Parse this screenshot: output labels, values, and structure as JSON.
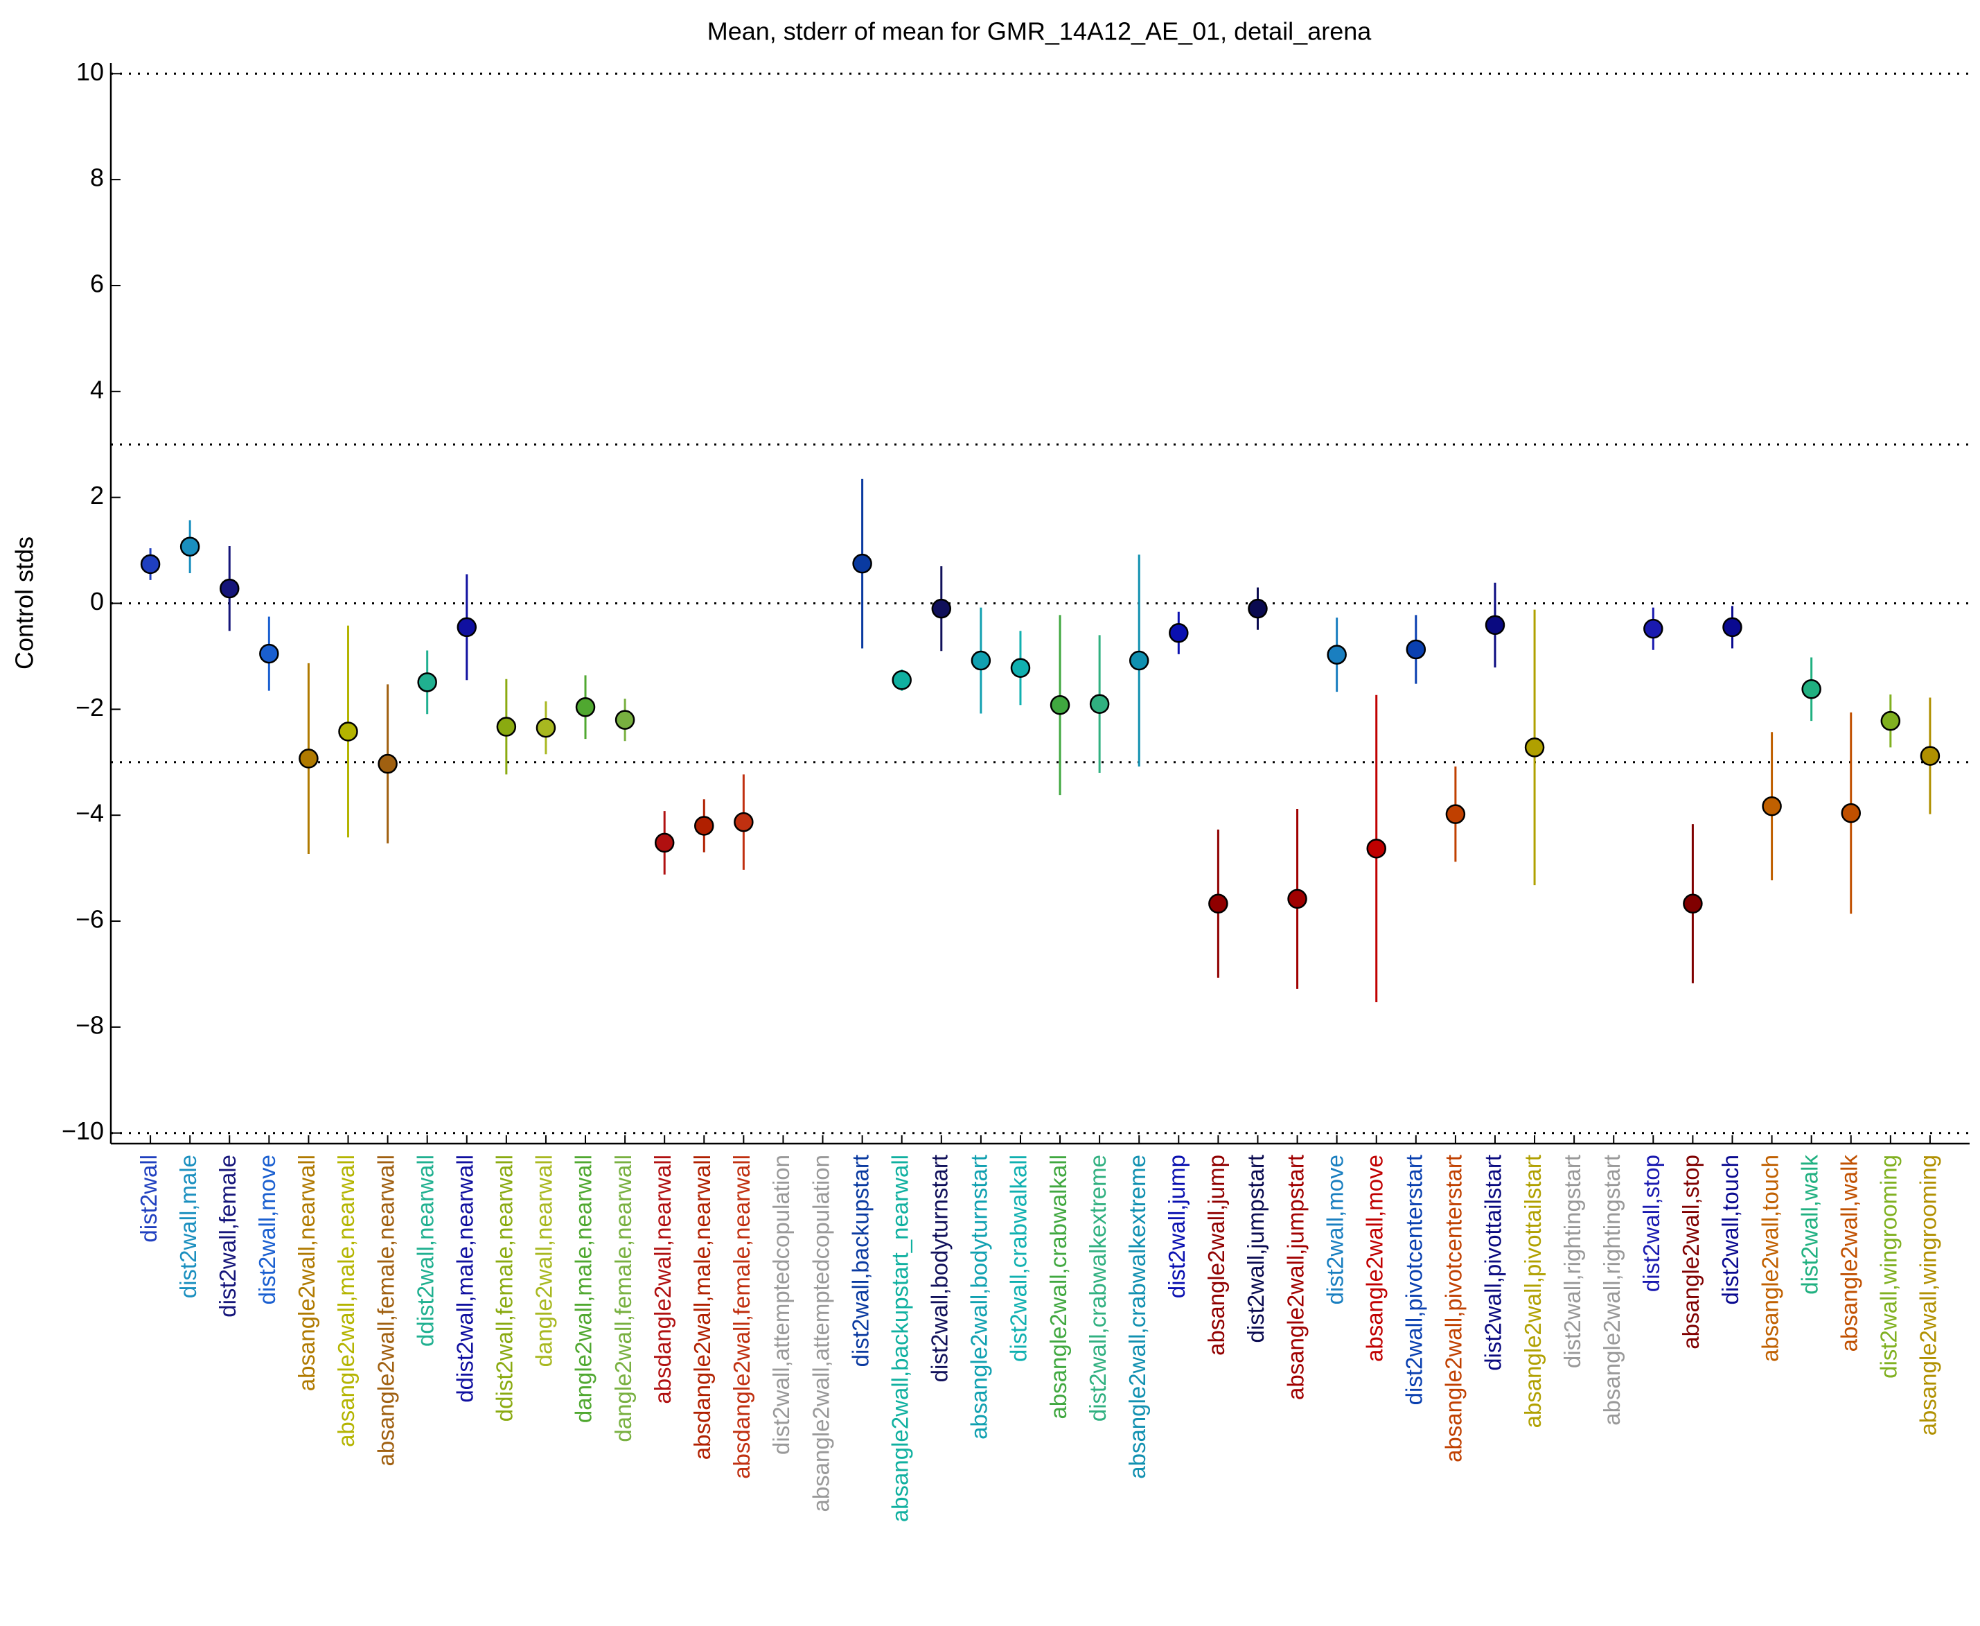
{
  "chart_data": {
    "type": "errorbar",
    "title": "Mean, stderr of mean for GMR_14A12_AE_01, detail_arena",
    "y_label": "Control stds",
    "categories": [
      "dist2wall",
      "dist2wall,male",
      "dist2wall,female",
      "dist2wall,move",
      "absangle2wall,nearwall",
      "absangle2wall,male,nearwall",
      "absangle2wall,female,nearwall",
      "ddist2wall,nearwall",
      "ddist2wall,male,nearwall",
      "ddist2wall,female,nearwall",
      "dangle2wall,nearwall",
      "dangle2wall,male,nearwall",
      "dangle2wall,female,nearwall",
      "absdangle2wall,nearwall",
      "absdangle2wall,male,nearwall",
      "absdangle2wall,female,nearwall",
      "dist2wall,attemptedcopulation",
      "absangle2wall,attemptedcopulation",
      "dist2wall,backupstart",
      "absangle2wall,backupstart_nearwall",
      "dist2wall,bodyturnstart",
      "absangle2wall,bodyturnstart",
      "dist2wall,crabwalkall",
      "absangle2wall,crabwalkall",
      "dist2wall,crabwalkextreme",
      "absangle2wall,crabwalkextreme",
      "dist2wall,jump",
      "absangle2wall,jump",
      "dist2wall,jumpstart",
      "absangle2wall,jumpstart",
      "dist2wall,move",
      "absangle2wall,move",
      "dist2wall,pivotcenterstart",
      "absangle2wall,pivotcenterstart",
      "dist2wall,pivottailstart",
      "absangle2wall,pivottailstart",
      "dist2wall,rightingstart",
      "absangle2wall,rightingstart",
      "dist2wall,stop",
      "absangle2wall,stop",
      "dist2wall,touch",
      "absangle2wall,touch",
      "dist2wall,walk",
      "absangle2wall,walk",
      "dist2wall,wingrooming",
      "absangle2wall,wingrooming"
    ],
    "values": [
      0.74,
      1.07,
      0.28,
      -0.95,
      -2.93,
      -2.42,
      -3.03,
      -1.49,
      -0.45,
      -2.33,
      -2.35,
      -1.96,
      -2.2,
      -4.52,
      -4.2,
      -4.13,
      null,
      null,
      0.75,
      -1.45,
      -0.1,
      -1.08,
      -1.22,
      -1.92,
      -1.9,
      -1.08,
      -0.56,
      -5.67,
      -0.1,
      -5.58,
      -0.97,
      -4.63,
      -0.87,
      -3.98,
      -0.41,
      -2.72,
      null,
      null,
      -0.48,
      -5.67,
      -0.45,
      -3.83,
      -1.62,
      -3.96,
      -2.22,
      -2.88
    ],
    "errors": [
      0.3,
      0.5,
      0.8,
      0.7,
      1.8,
      2.0,
      1.5,
      0.6,
      1.0,
      0.9,
      0.5,
      0.6,
      0.4,
      0.6,
      0.5,
      0.9,
      null,
      null,
      1.6,
      0.2,
      0.8,
      1.0,
      0.7,
      1.7,
      1.3,
      2.0,
      0.4,
      1.4,
      0.4,
      1.7,
      0.7,
      2.9,
      0.65,
      0.9,
      0.8,
      2.6,
      null,
      null,
      0.4,
      1.5,
      0.4,
      1.4,
      0.6,
      1.9,
      0.5,
      1.1
    ],
    "colors": [
      "#1f3fbf",
      "#1a8fbf",
      "#15157a",
      "#1a5fd0",
      "#b07a00",
      "#b4b400",
      "#a06010",
      "#20b090",
      "#1010a0",
      "#8aaa10",
      "#a8b820",
      "#50a830",
      "#78b040",
      "#b01010",
      "#b02000",
      "#c03010",
      "#999999",
      "#999999",
      "#0a3aa0",
      "#10b0a0",
      "#10105a",
      "#10a0b0",
      "#10b0b0",
      "#40a840",
      "#30b080",
      "#1090b0",
      "#0a10b0",
      "#900000",
      "#0a0a50",
      "#a00000",
      "#1a7fc0",
      "#c00000",
      "#0a40b0",
      "#c04000",
      "#0a0a80",
      "#b0a000",
      "#999999",
      "#999999",
      "#1a1ab0",
      "#800000",
      "#0a0a90",
      "#c06000",
      "#20b080",
      "#c05000",
      "#80b020",
      "#b09000"
    ],
    "ylim": [
      -10.2,
      10.2
    ],
    "yticks": [
      {
        "value": -10,
        "label": "−10"
      },
      {
        "value": -8,
        "label": "−8"
      },
      {
        "value": -6,
        "label": "−6"
      },
      {
        "value": -4,
        "label": "−4"
      },
      {
        "value": -2,
        "label": "−2"
      },
      0,
      2,
      4,
      6,
      8,
      10
    ],
    "reference_lines": [
      -10,
      -3,
      0,
      3,
      10
    ]
  }
}
